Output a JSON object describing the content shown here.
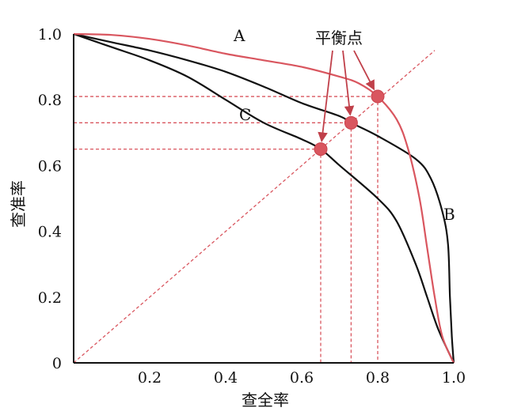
{
  "chart_data": {
    "type": "line",
    "title": "",
    "xlabel": "查全率",
    "ylabel": "查准率",
    "xlim": [
      0,
      1
    ],
    "ylim": [
      0,
      1
    ],
    "x_ticks": [
      "0.2",
      "0.4",
      "0.6",
      "0.8",
      "1.0"
    ],
    "y_ticks": [
      "0",
      "0.2",
      "0.4",
      "0.6",
      "0.8",
      "1.0"
    ],
    "grid": false,
    "series": [
      {
        "name": "A",
        "color": "#d9565f",
        "points": [
          [
            0,
            1.0
          ],
          [
            0.1,
            0.997
          ],
          [
            0.2,
            0.985
          ],
          [
            0.3,
            0.965
          ],
          [
            0.4,
            0.94
          ],
          [
            0.5,
            0.92
          ],
          [
            0.6,
            0.9
          ],
          [
            0.7,
            0.87
          ],
          [
            0.75,
            0.85
          ],
          [
            0.8,
            0.81
          ],
          [
            0.85,
            0.74
          ],
          [
            0.88,
            0.65
          ],
          [
            0.91,
            0.5
          ],
          [
            0.93,
            0.35
          ],
          [
            0.95,
            0.2
          ],
          [
            0.97,
            0.08
          ],
          [
            1.0,
            0
          ]
        ]
      },
      {
        "name": "B",
        "color": "#111111",
        "points": [
          [
            0,
            1.0
          ],
          [
            0.1,
            0.975
          ],
          [
            0.2,
            0.95
          ],
          [
            0.3,
            0.92
          ],
          [
            0.4,
            0.885
          ],
          [
            0.5,
            0.84
          ],
          [
            0.6,
            0.79
          ],
          [
            0.7,
            0.75
          ],
          [
            0.73,
            0.73
          ],
          [
            0.8,
            0.69
          ],
          [
            0.9,
            0.62
          ],
          [
            0.94,
            0.56
          ],
          [
            0.97,
            0.46
          ],
          [
            0.985,
            0.36
          ],
          [
            0.99,
            0.2
          ],
          [
            0.995,
            0.08
          ],
          [
            1.0,
            0
          ]
        ]
      },
      {
        "name": "C",
        "color": "#111111",
        "points": [
          [
            0,
            1.0
          ],
          [
            0.1,
            0.96
          ],
          [
            0.2,
            0.92
          ],
          [
            0.3,
            0.87
          ],
          [
            0.4,
            0.8
          ],
          [
            0.5,
            0.73
          ],
          [
            0.6,
            0.68
          ],
          [
            0.65,
            0.65
          ],
          [
            0.7,
            0.6
          ],
          [
            0.8,
            0.5
          ],
          [
            0.85,
            0.43
          ],
          [
            0.9,
            0.3
          ],
          [
            0.93,
            0.2
          ],
          [
            0.96,
            0.1
          ],
          [
            1.0,
            0
          ]
        ]
      }
    ],
    "reference_line": {
      "points": [
        [
          0,
          0
        ],
        [
          0.95,
          0.95
        ]
      ],
      "color": "#d9565f",
      "style": "dashed"
    },
    "break_even_points": [
      {
        "x": 0.65,
        "y": 0.65
      },
      {
        "x": 0.73,
        "y": 0.73
      },
      {
        "x": 0.8,
        "y": 0.81
      }
    ],
    "annotation": {
      "text": "平衡点"
    },
    "accent_color": "#d9565f"
  }
}
